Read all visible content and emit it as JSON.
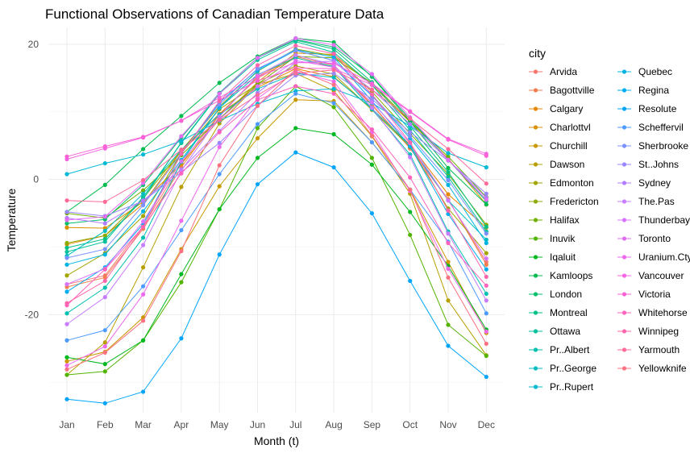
{
  "chart_data": {
    "type": "line",
    "title": "Functional Observations of Canadian Temperature Data",
    "xlabel": "Month (t)",
    "ylabel": "Temperature",
    "categories": [
      "Jan",
      "Feb",
      "Mar",
      "Apr",
      "May",
      "Jun",
      "Jul",
      "Aug",
      "Sep",
      "Oct",
      "Nov",
      "Dec"
    ],
    "ylim": [
      -34.5,
      22.5
    ],
    "yticks": [
      20,
      0,
      -20
    ],
    "grid": true,
    "markers": true,
    "legend": {
      "title": "city",
      "position": "right",
      "columns": 2
    },
    "series": [
      {
        "name": "Arvida",
        "color": "#F8766D",
        "values": [
          -15.5,
          -14.2,
          -6.9,
          2.4,
          9.7,
          15.0,
          18.0,
          16.6,
          11.0,
          4.6,
          -3.0,
          -12.2
        ]
      },
      {
        "name": "Bagottville",
        "color": "#F07F4D",
        "values": [
          -15.9,
          -14.5,
          -7.3,
          1.8,
          9.6,
          15.2,
          18.2,
          16.9,
          11.1,
          4.7,
          -2.9,
          -12.6
        ]
      },
      {
        "name": "Calgary",
        "color": "#E58700",
        "values": [
          -9.6,
          -8.3,
          -3.6,
          4.2,
          9.7,
          13.6,
          16.4,
          15.2,
          10.4,
          5.2,
          -2.2,
          -7.1
        ]
      },
      {
        "name": "Charlottvl",
        "color": "#D89000",
        "values": [
          -7.1,
          -7.2,
          -3.3,
          2.3,
          8.9,
          14.4,
          18.7,
          18.5,
          14.0,
          8.5,
          3.1,
          -3.7
        ]
      },
      {
        "name": "Churchill",
        "color": "#C99800",
        "values": [
          -26.9,
          -25.5,
          -20.4,
          -10.3,
          -1.0,
          6.1,
          11.8,
          11.6,
          5.5,
          -1.5,
          -12.2,
          -22.7
        ]
      },
      {
        "name": "Dawson",
        "color": "#B79F00",
        "values": [
          -28.9,
          -24.1,
          -13.0,
          -1.1,
          8.3,
          14.0,
          15.7,
          13.1,
          6.4,
          -2.1,
          -17.9,
          -26.0
        ]
      },
      {
        "name": "Edmonton",
        "color": "#A3A500",
        "values": [
          -14.2,
          -10.9,
          -5.4,
          3.9,
          10.4,
          14.1,
          16.8,
          15.6,
          10.3,
          4.8,
          -4.3,
          -10.9
        ]
      },
      {
        "name": "Fredericton",
        "color": "#8DAB00",
        "values": [
          -9.4,
          -8.3,
          -2.8,
          4.3,
          10.8,
          16.0,
          19.3,
          18.3,
          13.0,
          6.8,
          0.8,
          -6.7
        ]
      },
      {
        "name": "Halifax",
        "color": "#72B000",
        "values": [
          -5.0,
          -5.7,
          -1.6,
          3.6,
          9.0,
          14.1,
          18.2,
          18.0,
          14.3,
          8.6,
          3.4,
          -2.6
        ]
      },
      {
        "name": "Inuvik",
        "color": "#53B400",
        "values": [
          -28.9,
          -28.4,
          -23.8,
          -15.2,
          -4.4,
          7.6,
          13.8,
          10.7,
          3.2,
          -8.2,
          -21.5,
          -26.1
        ]
      },
      {
        "name": "Iqaluit",
        "color": "#00B81F",
        "values": [
          -26.3,
          -27.3,
          -23.8,
          -14.0,
          -4.4,
          3.2,
          7.6,
          6.7,
          2.2,
          -4.8,
          -12.8,
          -22.2
        ]
      },
      {
        "name": "Kamloops",
        "color": "#00BB4E",
        "values": [
          -4.8,
          -0.8,
          4.5,
          9.4,
          14.3,
          18.2,
          20.9,
          20.3,
          15.2,
          8.6,
          1.7,
          -3.7
        ]
      },
      {
        "name": "London",
        "color": "#00BE6C",
        "values": [
          -6.5,
          -5.9,
          -0.8,
          6.2,
          12.8,
          18.0,
          20.7,
          19.6,
          15.3,
          8.9,
          2.9,
          -3.2
        ]
      },
      {
        "name": "Montreal",
        "color": "#00C085",
        "values": [
          -10.1,
          -8.8,
          -2.9,
          5.5,
          12.8,
          18.0,
          20.6,
          19.3,
          14.4,
          7.9,
          1.1,
          -7.0
        ]
      },
      {
        "name": "Ottawa",
        "color": "#00C19B",
        "values": [
          -10.7,
          -9.2,
          -2.6,
          5.4,
          12.7,
          17.7,
          20.4,
          18.8,
          14.0,
          7.3,
          0.4,
          -7.7
        ]
      },
      {
        "name": "Pr..Albert",
        "color": "#00C0AF",
        "values": [
          -19.8,
          -16.0,
          -8.6,
          2.6,
          10.6,
          15.5,
          18.0,
          16.7,
          10.4,
          3.7,
          -7.7,
          -16.9
        ]
      },
      {
        "name": "Pr..George",
        "color": "#00BDC2",
        "values": [
          -11.3,
          -7.6,
          -2.1,
          4.4,
          9.6,
          13.4,
          15.7,
          15.1,
          10.5,
          5.0,
          -3.1,
          -8.9
        ]
      },
      {
        "name": "Pr..Rupert",
        "color": "#00B9D3",
        "values": [
          0.8,
          2.4,
          3.7,
          5.7,
          8.7,
          11.2,
          13.1,
          13.4,
          11.3,
          7.9,
          3.9,
          1.8
        ]
      },
      {
        "name": "Quebec",
        "color": "#00B4E2",
        "values": [
          -12.6,
          -11.1,
          -4.7,
          2.9,
          10.6,
          16.1,
          19.1,
          17.6,
          12.4,
          6.1,
          -0.8,
          -9.4
        ]
      },
      {
        "name": "Regina",
        "color": "#00ADEF",
        "values": [
          -16.6,
          -13.0,
          -6.6,
          3.8,
          11.4,
          16.3,
          19.2,
          18.1,
          11.6,
          4.9,
          -5.1,
          -13.3
        ]
      },
      {
        "name": "Resolute",
        "color": "#00A5FA",
        "values": [
          -32.5,
          -33.1,
          -31.4,
          -23.5,
          -11.1,
          -0.7,
          4.0,
          1.8,
          -5.0,
          -15.0,
          -24.6,
          -29.2
        ]
      },
      {
        "name": "Scheffervil",
        "color": "#4D9BFF",
        "values": [
          -23.8,
          -22.3,
          -15.8,
          -7.5,
          0.8,
          8.2,
          12.7,
          11.3,
          5.5,
          -1.5,
          -9.2,
          -19.8
        ]
      },
      {
        "name": "Sherbrooke",
        "color": "#7A91FF",
        "values": [
          -11.6,
          -10.3,
          -3.8,
          3.9,
          11.1,
          16.4,
          19.1,
          17.6,
          12.5,
          6.4,
          -0.1,
          -8.0
        ]
      },
      {
        "name": "St..Johns",
        "color": "#9A86FF",
        "values": [
          -4.8,
          -5.4,
          -3.2,
          1.1,
          5.4,
          10.9,
          15.4,
          15.7,
          11.9,
          7.0,
          2.8,
          -2.1
        ]
      },
      {
        "name": "Sydney",
        "color": "#B37BFF",
        "values": [
          -5.7,
          -6.5,
          -3.1,
          1.5,
          7.2,
          12.8,
          17.3,
          17.5,
          13.3,
          8.2,
          2.9,
          -2.7
        ]
      },
      {
        "name": "The.Pas",
        "color": "#C77CFF",
        "values": [
          -21.4,
          -17.4,
          -9.7,
          1.3,
          9.3,
          15.4,
          18.4,
          17.0,
          10.6,
          3.3,
          -8.0,
          -17.9
        ]
      },
      {
        "name": "Thunderbay",
        "color": "#D774FF",
        "values": [
          -15.5,
          -13.2,
          -6.2,
          2.7,
          8.9,
          13.8,
          17.6,
          16.6,
          11.4,
          5.4,
          -3.1,
          -11.7
        ]
      },
      {
        "name": "Toronto",
        "color": "#E36EF6",
        "values": [
          -6.0,
          -5.5,
          -0.5,
          6.4,
          12.7,
          18.0,
          20.9,
          19.9,
          15.6,
          9.2,
          2.9,
          -3.0
        ]
      },
      {
        "name": "Uranium.Cty",
        "color": "#ED68ED",
        "values": [
          -27.5,
          -24.7,
          -17.0,
          -6.1,
          4.8,
          12.0,
          16.0,
          14.5,
          7.0,
          -1.7,
          -13.2,
          -22.5
        ]
      },
      {
        "name": "Vancouver",
        "color": "#F564E3",
        "values": [
          3.0,
          4.6,
          6.2,
          8.7,
          12.1,
          15.2,
          17.3,
          17.2,
          14.2,
          10.1,
          6.0,
          3.8
        ]
      },
      {
        "name": "Victoria",
        "color": "#FB61D7",
        "values": [
          3.4,
          4.9,
          6.3,
          8.7,
          11.7,
          14.6,
          16.5,
          16.4,
          14.0,
          10.0,
          5.9,
          3.5
        ]
      },
      {
        "name": "Whitehorse",
        "color": "#FF62BC",
        "values": [
          -18.6,
          -13.3,
          -7.0,
          0.9,
          7.0,
          11.8,
          13.8,
          12.7,
          7.4,
          0.3,
          -9.4,
          -15.7
        ]
      },
      {
        "name": "Winnipeg",
        "color": "#FF65AC",
        "values": [
          -18.3,
          -15.0,
          -7.0,
          3.8,
          11.6,
          16.9,
          19.8,
          18.6,
          12.6,
          5.5,
          -4.6,
          -14.4
        ]
      },
      {
        "name": "Yarmouth",
        "color": "#FF6A98",
        "values": [
          -3.1,
          -3.3,
          -0.1,
          4.4,
          8.8,
          12.5,
          15.7,
          16.2,
          13.3,
          9.0,
          4.5,
          -0.6
        ]
      },
      {
        "name": "Yellowknife",
        "color": "#FC717F",
        "values": [
          -28.1,
          -25.6,
          -20.9,
          -10.6,
          2.1,
          10.9,
          16.3,
          14.0,
          6.5,
          -1.5,
          -14.5,
          -24.3
        ]
      }
    ]
  }
}
